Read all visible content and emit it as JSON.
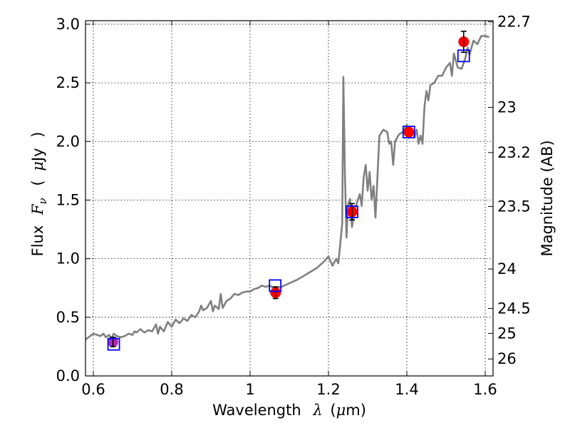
{
  "chart_data": {
    "type": "line",
    "xlabel_parts": [
      "Wavelength",
      "λ",
      "(",
      "μ",
      "m)"
    ],
    "ylabel_parts": [
      "Flux",
      "F",
      "ν",
      "(",
      "μ",
      "Jy",
      ")"
    ],
    "y2label": "Magnitude (AB)",
    "xlim": [
      0.58,
      1.62
    ],
    "ylim": [
      0.0,
      3.03
    ],
    "x_ticks": [
      0.6,
      0.8,
      1.0,
      1.2,
      1.4,
      1.6
    ],
    "x_tick_labels": [
      "0.6",
      "0.8",
      "1",
      "1.2",
      "1.4",
      "1.6"
    ],
    "y_ticks": [
      0.0,
      0.5,
      1.0,
      1.5,
      2.0,
      2.5,
      3.0
    ],
    "y_tick_labels": [
      "0.0",
      "0.5",
      "1.0",
      "1.5",
      "2.0",
      "2.5",
      "3.0"
    ],
    "y2_ticks": [
      {
        "mag": 22.7,
        "label": "22.7"
      },
      {
        "mag": 23.0,
        "label": "23"
      },
      {
        "mag": 23.2,
        "label": "23.2"
      },
      {
        "mag": 23.5,
        "label": "23.5"
      },
      {
        "mag": 24.0,
        "label": "24"
      },
      {
        "mag": 24.5,
        "label": "24.5"
      },
      {
        "mag": 25.0,
        "label": "25"
      },
      {
        "mag": 26.0,
        "label": "26"
      }
    ],
    "grid": true,
    "colors": {
      "spectrum": "#808080",
      "observed": "#ff0000",
      "model": "#0000ff",
      "errorbar": "#000000",
      "first_marker": "#b22bb2"
    },
    "series": [
      {
        "kind": "spectrum",
        "x": [
          0.58,
          0.592,
          0.6,
          0.61,
          0.618,
          0.626,
          0.632,
          0.64,
          0.646,
          0.652,
          0.66,
          0.67,
          0.68,
          0.69,
          0.7,
          0.705,
          0.71,
          0.72,
          0.73,
          0.74,
          0.75,
          0.76,
          0.765,
          0.77,
          0.78,
          0.79,
          0.8,
          0.81,
          0.82,
          0.83,
          0.84,
          0.85,
          0.86,
          0.87,
          0.875,
          0.88,
          0.89,
          0.9,
          0.905,
          0.91,
          0.92,
          0.925,
          0.93,
          0.94,
          0.95,
          0.96,
          0.97,
          0.98,
          0.99,
          1.0,
          1.01,
          1.02,
          1.03,
          1.04,
          1.05,
          1.06,
          1.08,
          1.1,
          1.12,
          1.14,
          1.16,
          1.17,
          1.18,
          1.19,
          1.2,
          1.21,
          1.22,
          1.225,
          1.23,
          1.235,
          1.238,
          1.242,
          1.246,
          1.25,
          1.255,
          1.26,
          1.265,
          1.27,
          1.28,
          1.285,
          1.29,
          1.295,
          1.3,
          1.305,
          1.31,
          1.315,
          1.32,
          1.33,
          1.34,
          1.35,
          1.355,
          1.36,
          1.365,
          1.37,
          1.38,
          1.39,
          1.4,
          1.405,
          1.41,
          1.42,
          1.425,
          1.43,
          1.435,
          1.44,
          1.445,
          1.45,
          1.455,
          1.46,
          1.47,
          1.48,
          1.49,
          1.5,
          1.51,
          1.515,
          1.52,
          1.53,
          1.54,
          1.55,
          1.555,
          1.56,
          1.57,
          1.58,
          1.59,
          1.6,
          1.61
        ],
        "y": [
          0.31,
          0.34,
          0.36,
          0.35,
          0.34,
          0.36,
          0.33,
          0.35,
          0.32,
          0.36,
          0.34,
          0.33,
          0.34,
          0.36,
          0.35,
          0.38,
          0.37,
          0.4,
          0.37,
          0.39,
          0.38,
          0.44,
          0.36,
          0.42,
          0.38,
          0.46,
          0.42,
          0.48,
          0.45,
          0.49,
          0.47,
          0.52,
          0.5,
          0.55,
          0.6,
          0.56,
          0.58,
          0.64,
          0.55,
          0.6,
          0.57,
          0.7,
          0.58,
          0.64,
          0.66,
          0.7,
          0.69,
          0.71,
          0.72,
          0.72,
          0.74,
          0.75,
          0.77,
          0.76,
          0.77,
          0.75,
          0.76,
          0.79,
          0.82,
          0.86,
          0.9,
          0.92,
          0.95,
          0.98,
          1.02,
          0.94,
          1.0,
          0.96,
          1.12,
          1.3,
          2.55,
          1.72,
          1.18,
          1.46,
          1.51,
          1.27,
          1.38,
          1.45,
          1.55,
          1.45,
          1.7,
          1.8,
          1.58,
          1.74,
          1.5,
          1.62,
          1.35,
          2.05,
          2.1,
          2.08,
          1.98,
          2.0,
          1.8,
          2.0,
          2.06,
          2.08,
          2.14,
          2.03,
          2.08,
          2.04,
          2.1,
          1.98,
          2.05,
          1.98,
          2.3,
          2.43,
          2.35,
          2.48,
          2.5,
          2.56,
          2.56,
          2.63,
          2.67,
          2.56,
          2.75,
          2.63,
          2.62,
          2.72,
          2.8,
          2.74,
          2.86,
          2.83,
          2.9,
          2.9,
          2.89
        ]
      },
      {
        "kind": "observed",
        "x": [
          0.65,
          1.065,
          1.26,
          1.405,
          1.545
        ],
        "y": [
          0.29,
          0.71,
          1.4,
          2.08,
          2.85
        ],
        "yerr": [
          0.04,
          0.05,
          0.07,
          0.0,
          0.09
        ]
      },
      {
        "kind": "model",
        "x": [
          0.652,
          1.064,
          1.26,
          1.405,
          1.545
        ],
        "y": [
          0.27,
          0.77,
          1.4,
          2.08,
          2.73
        ]
      }
    ]
  }
}
